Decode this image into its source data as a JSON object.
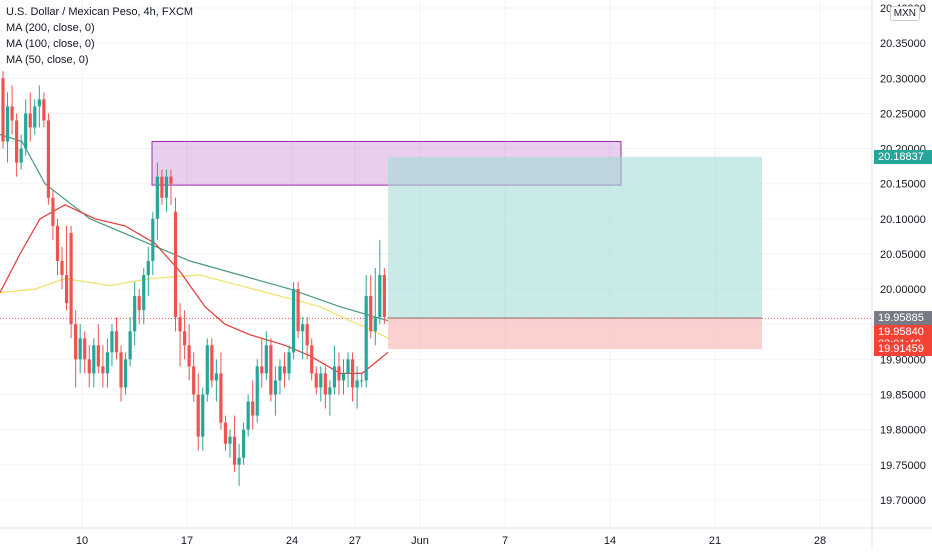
{
  "legend": {
    "title": "U.S. Dollar / Mexican Peso, 4h, FXCM",
    "ma200": "MA (200, close, 0)",
    "ma100": "MA (100, close, 0)",
    "ma50": "MA (50, close, 0)"
  },
  "currency_badge": "MXN",
  "price_tags": {
    "target": "20.18837",
    "gray": "19.95885",
    "current": "19.95840",
    "countdown": "03:01:48",
    "stop": "19.91459"
  },
  "colors": {
    "up": "#26a69a",
    "down": "#ef5350",
    "ma200": "#4a9a7e",
    "ma100": "#f2e06b",
    "ma50": "#e53935",
    "purple_zone": "#ce93d8",
    "target_zone": "#a5dcd5",
    "stop_zone": "#f9b9b7",
    "gray_tag": "#787b86",
    "target_tag": "#26a69a",
    "red_tag": "#f44336"
  },
  "chart_data": {
    "type": "candlestick",
    "title": "U.S. Dollar / Mexican Peso, 4h, FXCM",
    "symbol": "USDMXN",
    "timeframe": "4h",
    "x_ticks": [
      "10",
      "17",
      "24",
      "27",
      "Jun",
      "7",
      "14",
      "21",
      "28"
    ],
    "y_ticks": [
      19.7,
      19.75,
      19.8,
      19.85,
      19.9,
      19.95,
      20.0,
      20.05,
      20.1,
      20.15,
      20.2,
      20.25,
      20.3,
      20.35,
      20.4
    ],
    "y_tick_labels": [
      "19.70000",
      "19.75000",
      "19.80000",
      "19.85000",
      "19.90000",
      "19.95000",
      "20.00000",
      "20.05000",
      "20.10000",
      "20.15000",
      "20.20000",
      "20.25000",
      "20.30000",
      "20.35000",
      "20.40000"
    ],
    "ylim": [
      19.66,
      20.41
    ],
    "candles": [
      [
        20.3,
        20.31,
        20.2,
        20.21
      ],
      [
        20.21,
        20.28,
        20.18,
        20.26
      ],
      [
        20.26,
        20.29,
        20.22,
        20.24
      ],
      [
        20.24,
        20.25,
        20.16,
        20.18
      ],
      [
        20.18,
        20.22,
        20.17,
        20.2
      ],
      [
        20.2,
        20.27,
        20.19,
        20.25
      ],
      [
        20.25,
        20.28,
        20.21,
        20.23
      ],
      [
        20.23,
        20.27,
        20.22,
        20.26
      ],
      [
        20.26,
        20.29,
        20.23,
        20.27
      ],
      [
        20.27,
        20.28,
        20.23,
        20.24
      ],
      [
        20.24,
        20.25,
        20.12,
        20.13
      ],
      [
        20.13,
        20.14,
        20.07,
        20.09
      ],
      [
        20.09,
        20.1,
        20.02,
        20.04
      ],
      [
        20.04,
        20.06,
        20.0,
        20.02
      ],
      [
        20.02,
        20.09,
        19.97,
        19.98
      ],
      [
        20.08,
        20.09,
        19.93,
        19.95
      ],
      [
        19.95,
        19.97,
        19.86,
        19.9
      ],
      [
        19.9,
        19.95,
        19.88,
        19.93
      ],
      [
        19.93,
        19.94,
        19.88,
        19.9
      ],
      [
        19.9,
        19.92,
        19.86,
        19.88
      ],
      [
        19.88,
        19.93,
        19.86,
        19.92
      ],
      [
        19.92,
        19.95,
        19.88,
        19.89
      ],
      [
        19.89,
        19.92,
        19.86,
        19.88
      ],
      [
        19.88,
        19.93,
        19.86,
        19.91
      ],
      [
        19.91,
        19.95,
        19.89,
        19.94
      ],
      [
        19.94,
        19.96,
        19.9,
        19.91
      ],
      [
        19.91,
        19.92,
        19.84,
        19.86
      ],
      [
        19.86,
        19.91,
        19.85,
        19.9
      ],
      [
        19.9,
        19.96,
        19.89,
        19.94
      ],
      [
        19.94,
        20.01,
        19.92,
        19.99
      ],
      [
        19.99,
        20.0,
        19.95,
        19.97
      ],
      [
        19.97,
        20.03,
        19.95,
        20.02
      ],
      [
        20.02,
        20.06,
        19.99,
        20.04
      ],
      [
        20.04,
        20.11,
        20.02,
        20.1
      ],
      [
        20.1,
        20.18,
        20.07,
        20.16
      ],
      [
        20.16,
        20.17,
        20.12,
        20.13
      ],
      [
        20.13,
        20.17,
        20.11,
        20.16
      ],
      [
        20.16,
        20.17,
        20.12,
        20.15
      ],
      [
        20.11,
        20.13,
        19.94,
        19.96
      ],
      [
        19.96,
        19.98,
        19.89,
        19.94
      ],
      [
        19.94,
        19.97,
        19.9,
        19.92
      ],
      [
        19.92,
        19.95,
        19.87,
        19.89
      ],
      [
        19.89,
        19.91,
        19.84,
        19.85
      ],
      [
        19.85,
        19.88,
        19.77,
        19.79
      ],
      [
        19.79,
        19.86,
        19.77,
        19.85
      ],
      [
        19.85,
        19.93,
        19.84,
        19.92
      ],
      [
        19.92,
        19.93,
        19.86,
        19.87
      ],
      [
        19.87,
        19.9,
        19.84,
        19.88
      ],
      [
        19.88,
        19.91,
        19.8,
        19.81
      ],
      [
        19.81,
        19.82,
        19.77,
        19.78
      ],
      [
        19.78,
        19.8,
        19.76,
        19.79
      ],
      [
        19.79,
        19.82,
        19.74,
        19.75
      ],
      [
        19.75,
        19.78,
        19.72,
        19.76
      ],
      [
        19.76,
        19.81,
        19.75,
        19.8
      ],
      [
        19.8,
        19.85,
        19.79,
        19.84
      ],
      [
        19.84,
        19.87,
        19.8,
        19.82
      ],
      [
        19.82,
        19.9,
        19.81,
        19.89
      ],
      [
        19.89,
        19.93,
        19.86,
        19.88
      ],
      [
        19.88,
        19.94,
        19.87,
        19.92
      ],
      [
        19.92,
        19.93,
        19.84,
        19.85
      ],
      [
        19.85,
        19.89,
        19.82,
        19.87
      ],
      [
        19.87,
        19.9,
        19.85,
        19.89
      ],
      [
        19.89,
        19.91,
        19.86,
        19.88
      ],
      [
        19.88,
        19.92,
        19.87,
        19.91
      ],
      [
        19.91,
        20.01,
        19.9,
        20.0
      ],
      [
        20.0,
        20.01,
        19.93,
        19.94
      ],
      [
        19.94,
        19.96,
        19.9,
        19.95
      ],
      [
        19.95,
        19.96,
        19.9,
        19.92
      ],
      [
        19.92,
        19.93,
        19.87,
        19.88
      ],
      [
        19.88,
        19.89,
        19.85,
        19.86
      ],
      [
        19.86,
        19.89,
        19.84,
        19.88
      ],
      [
        19.88,
        19.89,
        19.83,
        19.85
      ],
      [
        19.85,
        19.87,
        19.82,
        19.86
      ],
      [
        19.86,
        19.92,
        19.85,
        19.89
      ],
      [
        19.89,
        19.91,
        19.85,
        19.87
      ],
      [
        19.87,
        19.9,
        19.85,
        19.88
      ],
      [
        19.88,
        19.91,
        19.86,
        19.9
      ],
      [
        19.9,
        19.91,
        19.84,
        19.86
      ],
      [
        19.86,
        19.89,
        19.83,
        19.87
      ],
      [
        19.87,
        19.88,
        19.86,
        19.87
      ],
      [
        19.87,
        20.02,
        19.86,
        19.99
      ],
      [
        19.99,
        20.02,
        19.93,
        19.94
      ],
      [
        19.94,
        20.03,
        19.92,
        19.96
      ],
      [
        19.96,
        20.07,
        19.95,
        20.02
      ],
      [
        20.02,
        20.03,
        19.95,
        19.96
      ]
    ],
    "ma200": [
      [
        0,
        20.22
      ],
      [
        22,
        20.21
      ],
      [
        45,
        20.15
      ],
      [
        90,
        20.1
      ],
      [
        140,
        20.07
      ],
      [
        190,
        20.04
      ],
      [
        240,
        20.02
      ],
      [
        290,
        20.0
      ],
      [
        340,
        19.975
      ],
      [
        388,
        19.955
      ]
    ],
    "ma100": [
      [
        0,
        19.995
      ],
      [
        35,
        20.0
      ],
      [
        65,
        20.015
      ],
      [
        110,
        20.005
      ],
      [
        150,
        20.015
      ],
      [
        200,
        20.02
      ],
      [
        240,
        20.005
      ],
      [
        280,
        19.99
      ],
      [
        320,
        19.975
      ],
      [
        350,
        19.955
      ],
      [
        375,
        19.94
      ],
      [
        388,
        19.93
      ]
    ],
    "ma50": [
      [
        0,
        19.995
      ],
      [
        20,
        20.05
      ],
      [
        40,
        20.1
      ],
      [
        65,
        20.12
      ],
      [
        95,
        20.1
      ],
      [
        125,
        20.09
      ],
      [
        155,
        20.065
      ],
      [
        180,
        20.025
      ],
      [
        205,
        19.975
      ],
      [
        225,
        19.95
      ],
      [
        250,
        19.935
      ],
      [
        285,
        19.92
      ],
      [
        310,
        19.905
      ],
      [
        340,
        19.88
      ],
      [
        362,
        19.88
      ],
      [
        375,
        19.895
      ],
      [
        388,
        19.91
      ]
    ],
    "zones": {
      "purple": {
        "top": 20.21,
        "bottom": 20.148
      },
      "target": {
        "top": 20.18837,
        "bottom": 19.95885
      },
      "stop": {
        "top": 19.95885,
        "bottom": 19.91459
      }
    }
  }
}
